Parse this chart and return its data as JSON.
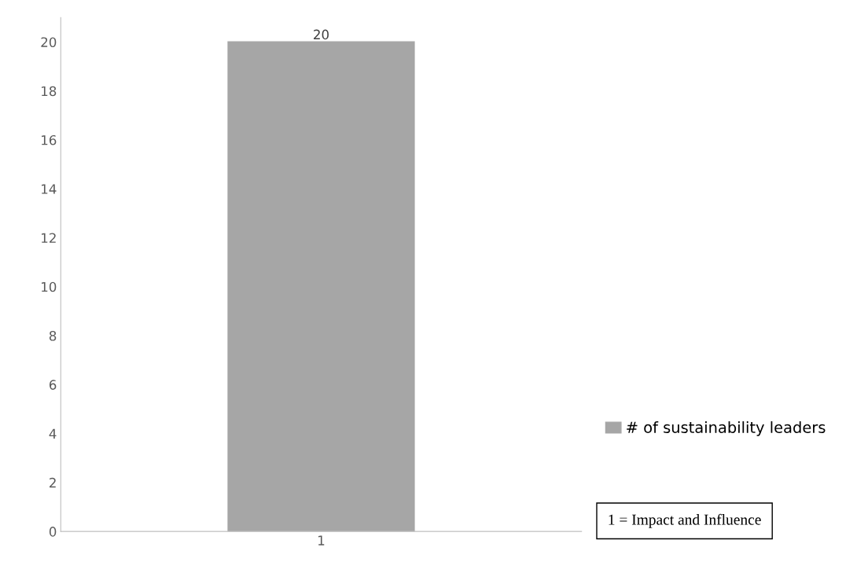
{
  "chart_data": {
    "type": "bar",
    "categories": [
      "1"
    ],
    "series": [
      {
        "name": "# of sustainability leaders",
        "color": "#a6a6a6",
        "values": [
          20
        ]
      }
    ],
    "ylim": [
      0,
      21
    ],
    "yticks": [
      0,
      2,
      4,
      6,
      8,
      10,
      12,
      14,
      16,
      18,
      20
    ],
    "data_labels": true,
    "grid": false,
    "legend": "right",
    "annotations": [
      "1 = Impact and Influence"
    ]
  }
}
